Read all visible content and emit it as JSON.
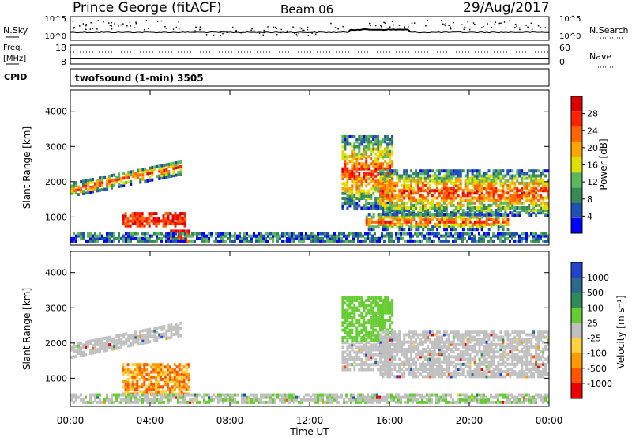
{
  "header": {
    "station": "Prince George (fitACF)",
    "beam": "Beam 06",
    "date": "29/Aug/2017"
  },
  "panels": {
    "noise": {
      "left_label": "N.Sky",
      "left_ticks": [
        "10^5",
        "10^0"
      ],
      "right_ticks": [
        "10^5",
        "10^0"
      ],
      "right_label": "N.Search"
    },
    "freq": {
      "left_label_1": "Freq.",
      "left_label_2": "[MHz]",
      "left_ticks": [
        "18",
        "8"
      ],
      "right_ticks": [
        "60",
        "0"
      ],
      "right_label": "Nave"
    },
    "cpid": {
      "label": "CPID",
      "value": "twofsound (1-min) 3505"
    }
  },
  "colors": {
    "power_scale": [
      "#0000ff",
      "#1f50b4",
      "#378a55",
      "#5cb85c",
      "#e0e000",
      "#ffa500",
      "#ff6600",
      "#ff2200",
      "#dd0000"
    ],
    "velocity_scale": [
      "#2244cc",
      "#2b6a8a",
      "#2e8b57",
      "#66cc33",
      "#c0c0c0",
      "#ffd040",
      "#ff9900",
      "#ff5500",
      "#ee0000"
    ]
  },
  "chart_data": [
    {
      "type": "heatmap",
      "quantity": "Power",
      "ylabel": "Slant Range [km]",
      "yticks": [
        "1000",
        "2000",
        "3000",
        "4000"
      ],
      "ylim": [
        200,
        4600
      ],
      "xlim": [
        0,
        24
      ],
      "colorbar_label": "Power [dB]",
      "colorbar_ticks": [
        "4",
        "8",
        "12",
        "16",
        "20",
        "24",
        "28"
      ],
      "colorbar_range": [
        0,
        32
      ],
      "echo_bands": [
        {
          "t0": 0.0,
          "t1": 5.6,
          "r0": 1550,
          "r1": 1900,
          "r1_end": 2600
        },
        {
          "t0": 2.6,
          "t1": 5.8,
          "r0": 700,
          "r1": 1100
        },
        {
          "t0": 5.0,
          "t1": 6.0,
          "r0": 200,
          "r1": 600
        },
        {
          "t0": 0.0,
          "t1": 24.0,
          "r0": 200,
          "r1": 550
        },
        {
          "t0": 13.6,
          "t1": 16.2,
          "r0": 1200,
          "r1": 3300
        },
        {
          "t0": 15.5,
          "t1": 24.0,
          "r0": 1000,
          "r1": 2300
        },
        {
          "t0": 14.8,
          "t1": 22.0,
          "r0": 600,
          "r1": 1050
        }
      ]
    },
    {
      "type": "heatmap",
      "quantity": "Velocity",
      "ylabel": "Slant Range [km]",
      "yticks": [
        "1000",
        "2000",
        "3000",
        "4000"
      ],
      "ylim": [
        200,
        4600
      ],
      "xlim": [
        0,
        24
      ],
      "xlabel": "Time UT",
      "xticks": [
        "00:00",
        "04:00",
        "08:00",
        "12:00",
        "16:00",
        "20:00",
        "00:00"
      ],
      "colorbar_label": "Velocity [m s⁻¹]",
      "colorbar_ticks": [
        "1000",
        "500",
        "100",
        "25",
        "-25",
        "-100",
        "-500",
        "-1000"
      ],
      "echo_bands": [
        {
          "t0": 0.0,
          "t1": 5.6,
          "r0": 1550,
          "r1": 1900,
          "r1_end": 2600
        },
        {
          "t0": 2.6,
          "t1": 6.0,
          "r0": 500,
          "r1": 1400
        },
        {
          "t0": 0.0,
          "t1": 24.0,
          "r0": 200,
          "r1": 550
        },
        {
          "t0": 13.6,
          "t1": 16.2,
          "r0": 1200,
          "r1": 3300
        },
        {
          "t0": 15.5,
          "t1": 24.0,
          "r0": 1000,
          "r1": 2300
        }
      ]
    }
  ]
}
